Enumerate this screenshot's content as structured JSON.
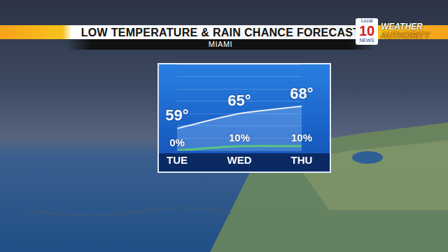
{
  "chart_data": {
    "type": "line",
    "title": "LOW TEMPERATURE & RAIN CHANCE FORECAST",
    "subtitle": "MIAMI",
    "annotations": [
      "Local",
      "10",
      "NEWS",
      "WEATHER",
      "AUTHORITY"
    ],
    "categories": [
      "TUE",
      "WED",
      "THU"
    ],
    "series": [
      {
        "color": "#e8eef5",
        "values": [
          59,
          65,
          68
        ],
        "value_labels": [
          "59°",
          "65°",
          "68°"
        ]
      },
      {
        "color": "#3cc43c",
        "values": [
          0,
          10,
          10
        ],
        "value_labels": [
          "0%",
          "10%",
          "10%"
        ],
        "axis": "y2"
      }
    ],
    "ylim": [
      50,
      85
    ],
    "yticks": [
      50,
      55,
      60,
      65,
      70,
      75,
      80,
      85
    ],
    "y2lim": [
      0,
      200
    ],
    "y2ticks": [
      0,
      50,
      100,
      150,
      200
    ],
    "grid": true,
    "data_labels": true,
    "tick_labels": "x"
  }
}
